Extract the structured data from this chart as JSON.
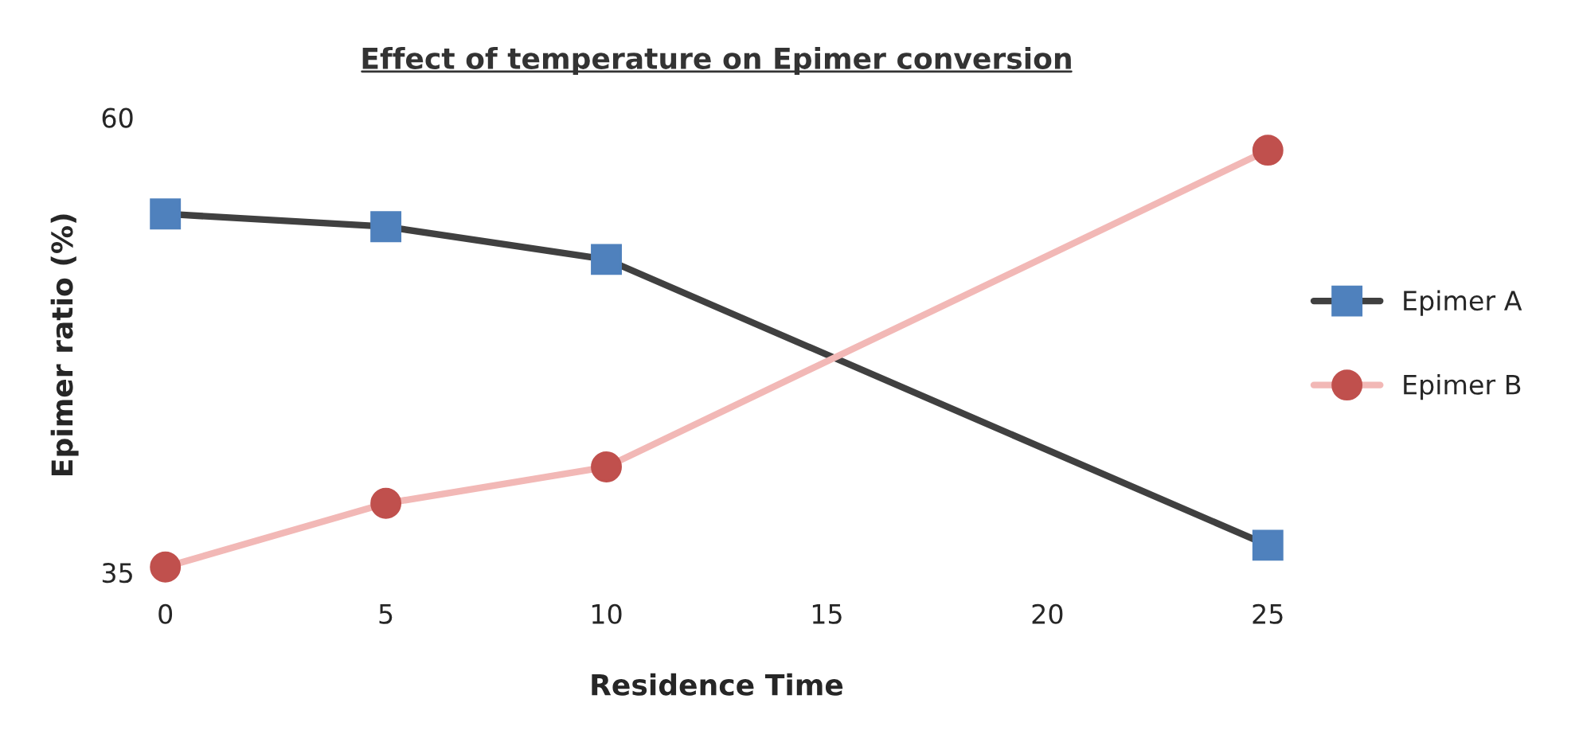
{
  "chart_data": {
    "type": "line",
    "title": "Effect of temperature on Epimer conversion",
    "xlabel": "Residence Time",
    "ylabel": "Epimer ratio (%)",
    "x": [
      0,
      5,
      10,
      25
    ],
    "series": [
      {
        "name": "Epimer A",
        "color": "#404040",
        "colors": [
          "#4f81bd",
          "#4f81bd",
          "#4f81bd",
          "#4f81bd"
        ],
        "marker": "square",
        "values": [
          54.7,
          54.0,
          52.2,
          36.5
        ]
      },
      {
        "name": "Epimer B",
        "color": "#f2b8b6",
        "colors": [
          "#c0504d",
          "#c0504d",
          "#c0504d",
          "#c0504d"
        ],
        "marker": "circle",
        "values": [
          35.3,
          38.8,
          40.8,
          58.2
        ]
      }
    ],
    "xlim": [
      0,
      25
    ],
    "xticks": [
      0,
      5,
      10,
      15,
      20,
      25
    ],
    "ylim": [
      35,
      60
    ],
    "yticks": [
      35,
      60
    ],
    "grid": false,
    "legend": "right",
    "line_style": "solid"
  }
}
